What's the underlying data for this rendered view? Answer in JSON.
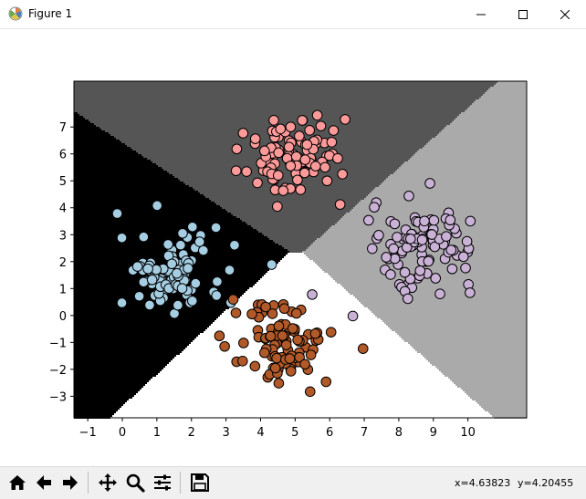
{
  "window": {
    "title": "Figure 1"
  },
  "toolbar": {
    "buttons": [
      {
        "name": "home-icon",
        "tip": "Home"
      },
      {
        "name": "back-icon",
        "tip": "Back"
      },
      {
        "name": "forward-icon",
        "tip": "Forward"
      },
      {
        "name": "pan-icon",
        "tip": "Pan"
      },
      {
        "name": "zoom-icon",
        "tip": "Zoom"
      },
      {
        "name": "subplots-icon",
        "tip": "Subplots"
      },
      {
        "name": "save-icon",
        "tip": "Save"
      }
    ],
    "x_readout": "x=4.63823",
    "y_readout": "y=4.20455"
  },
  "chart_data": {
    "type": "scatter",
    "xlim": [
      -1.4,
      11.7
    ],
    "ylim": [
      -3.8,
      8.7
    ],
    "x_ticks": [
      -1,
      0,
      1,
      2,
      3,
      4,
      5,
      6,
      7,
      8,
      9,
      10
    ],
    "y_ticks": [
      -3,
      -2,
      -1,
      0,
      1,
      2,
      3,
      4,
      5,
      6,
      7
    ],
    "x_tick_labels": [
      "−1",
      "0",
      "1",
      "2",
      "3",
      "4",
      "5",
      "6",
      "7",
      "8",
      "9",
      "10"
    ],
    "y_tick_labels": [
      "−3",
      "−2",
      "−1",
      "0",
      "1",
      "2",
      "3",
      "4",
      "5",
      "6",
      "7"
    ],
    "regions": [
      {
        "class": 0,
        "color": "#000000"
      },
      {
        "class": 1,
        "color": "#555555"
      },
      {
        "class": 2,
        "color": "#aaaaaa"
      },
      {
        "class": 3,
        "color": "#ffffff"
      }
    ],
    "series": [
      {
        "color": "#a6cee3",
        "center": [
          1.4,
          1.6
        ],
        "count": 100
      },
      {
        "color": "#fb9a99",
        "center": [
          5.0,
          5.9
        ],
        "count": 100
      },
      {
        "color": "#cab2d6",
        "center": [
          8.7,
          2.6
        ],
        "count": 100
      },
      {
        "color": "#b15928",
        "center": [
          4.6,
          -1.1
        ],
        "count": 100
      }
    ]
  }
}
